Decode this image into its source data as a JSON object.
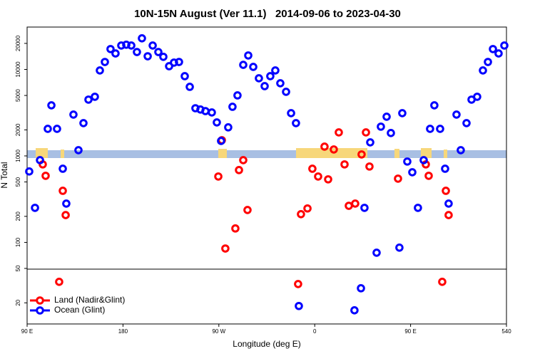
{
  "chart_data": {
    "type": "scatter",
    "title": "10N-15N August (Ver 11.1)   2014-09-06 to 2023-04-30",
    "x_label": "Longitude (deg E)",
    "y_label": "N Total",
    "log_y": true,
    "legend": "bottom-left",
    "xlim": [
      90,
      540
    ],
    "xticks": [
      {
        "value": 90,
        "label": "90 E"
      },
      180,
      {
        "value": 270,
        "label": "90 W"
      },
      {
        "value": 360,
        "label": "0"
      },
      {
        "value": 450,
        "label": "90 E"
      },
      540
    ],
    "ylim": [
      11.4,
      30900
    ],
    "yticks": [
      20000,
      10000,
      5000,
      2000,
      1000,
      500,
      200,
      100,
      50,
      20
    ],
    "series": [
      {
        "name": "Land (Nadir&Glint)",
        "color": "#ff0000",
        "x": [
          104.7,
          107.4,
          120.1,
          123.5,
          126.2,
          269.5,
          272.8,
          276.1,
          285.5,
          288.9,
          292.9,
          296.9,
          344.4,
          347.1,
          353.2,
          357.8,
          363.2,
          369.2,
          372.6,
          377.9,
          382.6,
          388.0,
          392.0,
          398.0,
          404.0,
          408.1,
          411.4,
          438.2,
          464.3,
          467.0,
          479.7,
          483.1,
          485.7
        ],
        "values": [
          798,
          589,
          35,
          395,
          207,
          578,
          1520,
          85,
          145,
          686,
          893,
          237,
          33,
          212,
          247,
          711,
          578,
          1280,
          536,
          1188,
          1870,
          798,
          265,
          281,
          1040,
          1870,
          754,
          546,
          798,
          589,
          35,
          395,
          207
        ]
      },
      {
        "name": "Ocean (Glint)",
        "color": "#0000ff",
        "x": [
          92.0,
          97.4,
          102.1,
          109.4,
          112.8,
          118.1,
          123.5,
          126.8,
          133.5,
          138.2,
          142.9,
          147.6,
          153.6,
          158.3,
          163.0,
          168.3,
          173.0,
          178.4,
          183.1,
          187.8,
          193.1,
          197.8,
          203.2,
          207.9,
          213.2,
          217.9,
          223.3,
          227.9,
          232.6,
          238.0,
          242.7,
          248.0,
          252.7,
          257.4,
          263.4,
          268.1,
          272.1,
          278.8,
          282.8,
          287.5,
          292.9,
          297.6,
          302.3,
          307.6,
          313.0,
          318.3,
          323.0,
          327.7,
          333.1,
          337.8,
          342.4,
          345.1,
          397.3,
          403.4,
          406.7,
          412.1,
          418.1,
          422.1,
          427.5,
          431.5,
          439.5,
          442.2,
          446.9,
          451.6,
          456.9,
          462.3,
          468.3,
          472.3,
          477.7,
          482.4,
          485.7,
          493.1,
          497.1,
          502.5,
          507.2,
          512.5,
          517.9,
          522.6,
          527.3,
          532.6,
          538.0
        ],
        "values": [
          661,
          251,
          893,
          2056,
          3846,
          2056,
          711,
          281,
          3006,
          1165,
          2394,
          4477,
          4830,
          9730,
          12200,
          17200,
          15300,
          18900,
          19300,
          18900,
          15900,
          22900,
          14200,
          18900,
          15900,
          14000,
          10900,
          12000,
          12200,
          8360,
          6290,
          3560,
          3440,
          3300,
          3180,
          2440,
          1490,
          2140,
          3700,
          5010,
          11300,
          14500,
          10700,
          7900,
          6410,
          8360,
          9730,
          6920,
          5510,
          3120,
          2394,
          18.4,
          16.4,
          29.5,
          251,
          1435,
          76,
          2180,
          2840,
          1840,
          87,
          3120,
          861,
          647,
          251,
          893,
          2056,
          3846,
          2056,
          711,
          281,
          3006,
          1165,
          2394,
          4477,
          4830,
          9730,
          12200,
          17200,
          15300,
          18900
        ]
      }
    ]
  }
}
